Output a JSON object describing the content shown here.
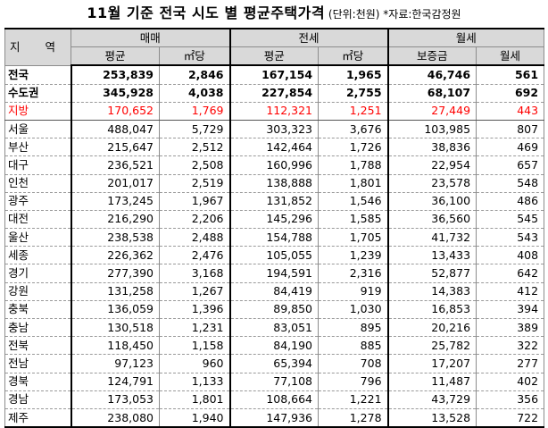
{
  "title": {
    "main": "11월 기준 전국 시도 별 평균주택가격",
    "sub": " (단위:천원) *자료:한국감정원"
  },
  "headers": {
    "region": "지 역",
    "groups": [
      "매매",
      "전세",
      "월세"
    ],
    "cols": [
      "평균",
      "㎡당",
      "평균",
      "㎡당",
      "보증금",
      "월세"
    ]
  },
  "rows": [
    {
      "name": "전국",
      "values": [
        "253,839",
        "2,846",
        "167,154",
        "1,965",
        "46,746",
        "561"
      ],
      "style": "bold"
    },
    {
      "name": "수도권",
      "values": [
        "345,928",
        "4,038",
        "227,854",
        "2,755",
        "68,107",
        "692"
      ],
      "style": "bold"
    },
    {
      "name": "지방",
      "values": [
        "170,652",
        "1,769",
        "112,321",
        "1,251",
        "27,449",
        "443"
      ],
      "style": "red"
    },
    {
      "name": "서울",
      "values": [
        "488,047",
        "5,729",
        "303,323",
        "3,676",
        "103,985",
        "807"
      ]
    },
    {
      "name": "부산",
      "values": [
        "215,647",
        "2,512",
        "142,464",
        "1,726",
        "38,836",
        "469"
      ]
    },
    {
      "name": "대구",
      "values": [
        "236,521",
        "2,508",
        "160,996",
        "1,788",
        "22,954",
        "657"
      ]
    },
    {
      "name": "인천",
      "values": [
        "201,017",
        "2,519",
        "138,888",
        "1,801",
        "23,578",
        "548"
      ]
    },
    {
      "name": "광주",
      "values": [
        "173,245",
        "1,967",
        "131,852",
        "1,546",
        "36,100",
        "486"
      ]
    },
    {
      "name": "대전",
      "values": [
        "216,290",
        "2,206",
        "145,296",
        "1,585",
        "36,560",
        "545"
      ]
    },
    {
      "name": "울산",
      "values": [
        "238,538",
        "2,488",
        "154,788",
        "1,705",
        "41,732",
        "543"
      ]
    },
    {
      "name": "세종",
      "values": [
        "226,362",
        "2,476",
        "105,055",
        "1,239",
        "13,433",
        "408"
      ]
    },
    {
      "name": "경기",
      "values": [
        "277,390",
        "3,168",
        "194,591",
        "2,316",
        "52,877",
        "642"
      ]
    },
    {
      "name": "강원",
      "values": [
        "131,258",
        "1,267",
        "84,419",
        "919",
        "14,383",
        "412"
      ]
    },
    {
      "name": "충북",
      "values": [
        "136,059",
        "1,396",
        "89,850",
        "1,030",
        "16,853",
        "394"
      ]
    },
    {
      "name": "충남",
      "values": [
        "130,518",
        "1,231",
        "83,051",
        "895",
        "20,216",
        "389"
      ]
    },
    {
      "name": "전북",
      "values": [
        "118,450",
        "1,158",
        "84,190",
        "885",
        "25,782",
        "322"
      ]
    },
    {
      "name": "전남",
      "values": [
        "97,123",
        "960",
        "65,394",
        "708",
        "17,207",
        "277"
      ]
    },
    {
      "name": "경북",
      "values": [
        "124,791",
        "1,133",
        "77,108",
        "796",
        "11,487",
        "402"
      ]
    },
    {
      "name": "경남",
      "values": [
        "173,053",
        "1,801",
        "108,664",
        "1,221",
        "43,729",
        "356"
      ]
    },
    {
      "name": "제주",
      "values": [
        "238,080",
        "1,940",
        "147,936",
        "1,278",
        "13,528",
        "722"
      ]
    }
  ]
}
